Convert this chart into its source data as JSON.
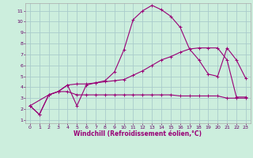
{
  "xlabel": "Windchill (Refroidissement éolien,°C)",
  "bg_color": "#cceedd",
  "grid_color": "#aacccc",
  "line_color": "#990077",
  "xlim": [
    -0.5,
    23.5
  ],
  "ylim": [
    0.7,
    11.7
  ],
  "xticks": [
    0,
    1,
    2,
    3,
    4,
    5,
    6,
    7,
    8,
    9,
    10,
    11,
    12,
    13,
    14,
    15,
    16,
    17,
    18,
    19,
    20,
    21,
    22,
    23
  ],
  "yticks": [
    1,
    2,
    3,
    4,
    5,
    6,
    7,
    8,
    9,
    10,
    11
  ],
  "line1_x": [
    0,
    1,
    2,
    3,
    4,
    5,
    6,
    7,
    8,
    9,
    10,
    11,
    12,
    13,
    14,
    15,
    16,
    17,
    18,
    19,
    20,
    21,
    22,
    23
  ],
  "line1_y": [
    2.3,
    1.5,
    3.3,
    3.6,
    4.2,
    2.3,
    4.2,
    4.4,
    4.6,
    5.4,
    7.4,
    10.2,
    11.0,
    11.5,
    11.1,
    10.5,
    9.5,
    7.5,
    6.5,
    5.2,
    5.0,
    7.6,
    6.5,
    4.8
  ],
  "line2_x": [
    0,
    2,
    3,
    4,
    5,
    6,
    7,
    8,
    9,
    10,
    11,
    12,
    13,
    14,
    15,
    16,
    17,
    18,
    19,
    20,
    21,
    22,
    23
  ],
  "line2_y": [
    2.3,
    3.3,
    3.6,
    4.2,
    4.3,
    4.3,
    4.4,
    4.5,
    4.6,
    4.7,
    5.1,
    5.5,
    6.0,
    6.5,
    6.8,
    7.2,
    7.5,
    7.6,
    7.6,
    7.6,
    6.5,
    3.1,
    3.1
  ],
  "line3_x": [
    0,
    1,
    2,
    3,
    4,
    5,
    6,
    7,
    8,
    9,
    10,
    11,
    12,
    13,
    14,
    15,
    16,
    17,
    18,
    19,
    20,
    21,
    22,
    23
  ],
  "line3_y": [
    2.3,
    1.5,
    3.3,
    3.6,
    3.6,
    3.3,
    3.3,
    3.3,
    3.3,
    3.3,
    3.3,
    3.3,
    3.3,
    3.3,
    3.3,
    3.3,
    3.2,
    3.2,
    3.2,
    3.2,
    3.2,
    3.0,
    3.0,
    3.0
  ],
  "marker": "+"
}
